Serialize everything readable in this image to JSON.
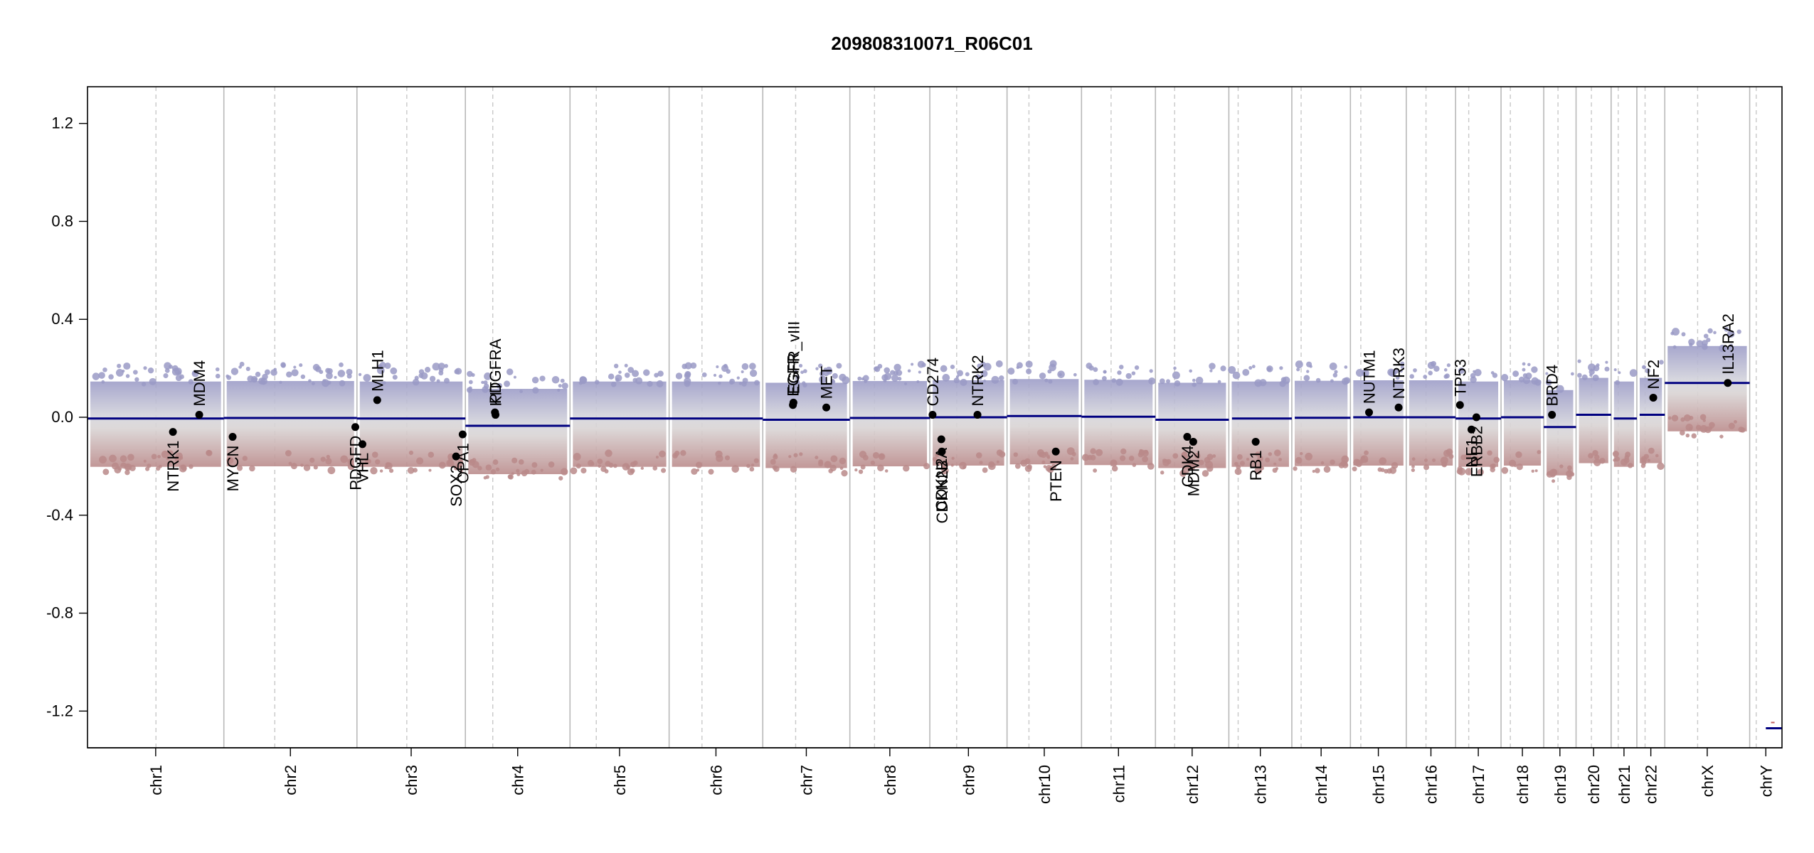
{
  "chart_data": {
    "type": "scatter",
    "title": "209808310071_R06C01",
    "xlabel": "",
    "ylabel": "",
    "ylim": [
      -1.35,
      1.35
    ],
    "y_ticks": [
      -1.2,
      -0.8,
      -0.4,
      0.0,
      0.4,
      0.8,
      1.2
    ],
    "y_tick_labels": [
      "-1.2",
      "-0.8",
      "-0.4",
      "0.0",
      "0.4",
      "0.8",
      "1.2"
    ],
    "grid": false,
    "colors": {
      "gain": "#9a9ac6",
      "neutral": "#d8d8d8",
      "loss": "#ba8a8a",
      "segment": "#000080",
      "chrom_boundary": "#b8b8b8",
      "centromere": "#c8c8c8",
      "gene_marker": "#000000"
    },
    "chromosomes": [
      {
        "name": "chr1",
        "len": 249,
        "cen": 125,
        "segments": [
          {
            "from": 0,
            "to": 1,
            "y": -0.005
          }
        ]
      },
      {
        "name": "chr2",
        "len": 243,
        "cen": 93,
        "segments": [
          {
            "from": 0,
            "to": 1,
            "y": -0.003
          }
        ]
      },
      {
        "name": "chr3",
        "len": 198,
        "cen": 91,
        "segments": [
          {
            "from": 0,
            "to": 1,
            "y": -0.005
          }
        ]
      },
      {
        "name": "chr4",
        "len": 191,
        "cen": 50,
        "segments": [
          {
            "from": 0,
            "to": 1,
            "y": -0.035
          }
        ]
      },
      {
        "name": "chr5",
        "len": 181,
        "cen": 48,
        "segments": [
          {
            "from": 0,
            "to": 1,
            "y": -0.005
          }
        ]
      },
      {
        "name": "chr6",
        "len": 171,
        "cen": 60,
        "segments": [
          {
            "from": 0,
            "to": 1,
            "y": -0.005
          }
        ]
      },
      {
        "name": "chr7",
        "len": 159,
        "cen": 60,
        "segments": [
          {
            "from": 0,
            "to": 1,
            "y": -0.01
          }
        ]
      },
      {
        "name": "chr8",
        "len": 146,
        "cen": 45,
        "segments": [
          {
            "from": 0,
            "to": 1,
            "y": -0.003
          }
        ]
      },
      {
        "name": "chr9",
        "len": 141,
        "cen": 49,
        "segments": [
          {
            "from": 0,
            "to": 1,
            "y": 0.0
          }
        ]
      },
      {
        "name": "chr10",
        "len": 136,
        "cen": 40,
        "segments": [
          {
            "from": 0,
            "to": 1,
            "y": 0.005
          }
        ]
      },
      {
        "name": "chr11",
        "len": 135,
        "cen": 54,
        "segments": [
          {
            "from": 0,
            "to": 1,
            "y": 0.002
          }
        ]
      },
      {
        "name": "chr12",
        "len": 134,
        "cen": 35,
        "segments": [
          {
            "from": 0,
            "to": 1,
            "y": -0.01
          }
        ]
      },
      {
        "name": "chr13",
        "len": 115,
        "cen": 17,
        "segments": [
          {
            "from": 0.05,
            "to": 1,
            "y": -0.005
          }
        ]
      },
      {
        "name": "chr14",
        "len": 107,
        "cen": 17,
        "segments": [
          {
            "from": 0.05,
            "to": 1,
            "y": -0.002
          }
        ]
      },
      {
        "name": "chr15",
        "len": 102,
        "cen": 19,
        "segments": [
          {
            "from": 0.05,
            "to": 1,
            "y": 0.0
          }
        ]
      },
      {
        "name": "chr16",
        "len": 90,
        "cen": 36,
        "segments": [
          {
            "from": 0,
            "to": 1,
            "y": 0.0
          }
        ]
      },
      {
        "name": "chr17",
        "len": 83,
        "cen": 24,
        "segments": [
          {
            "from": 0,
            "to": 1,
            "y": -0.005
          }
        ]
      },
      {
        "name": "chr18",
        "len": 78,
        "cen": 17,
        "segments": [
          {
            "from": 0,
            "to": 1,
            "y": 0.0
          }
        ]
      },
      {
        "name": "chr19",
        "len": 59,
        "cen": 26,
        "segments": [
          {
            "from": 0,
            "to": 1,
            "y": -0.04
          }
        ]
      },
      {
        "name": "chr20",
        "len": 64,
        "cen": 28,
        "segments": [
          {
            "from": 0,
            "to": 1,
            "y": 0.01
          }
        ]
      },
      {
        "name": "chr21",
        "len": 47,
        "cen": 13,
        "segments": [
          {
            "from": 0.1,
            "to": 1,
            "y": -0.005
          }
        ]
      },
      {
        "name": "chr22",
        "len": 51,
        "cen": 15,
        "segments": [
          {
            "from": 0.1,
            "to": 1,
            "y": 0.01
          }
        ]
      },
      {
        "name": "chrX",
        "len": 155,
        "cen": 60,
        "segments": [
          {
            "from": 0,
            "to": 1,
            "y": 0.14
          }
        ]
      },
      {
        "name": "chrY",
        "len": 59,
        "cen": 12,
        "segments": [
          {
            "from": 0.5,
            "to": 1,
            "y": -1.27
          }
        ]
      }
    ],
    "genes": [
      {
        "name": "NTRK1",
        "chr": "chr1",
        "pos": 156,
        "y": -0.06,
        "label": "below"
      },
      {
        "name": "MDM4",
        "chr": "chr1",
        "pos": 204,
        "y": 0.01,
        "label": "above"
      },
      {
        "name": "MYCN",
        "chr": "chr2",
        "pos": 16,
        "y": -0.08,
        "label": "below"
      },
      {
        "name": "PDGFD",
        "chr": "chr2",
        "pos": 240,
        "y": -0.04,
        "label": "below"
      },
      {
        "name": "VHL",
        "chr": "chr3",
        "pos": 10,
        "y": -0.11,
        "label": "below"
      },
      {
        "name": "MLH1",
        "chr": "chr3",
        "pos": 37,
        "y": 0.07,
        "label": "above"
      },
      {
        "name": "SOX2",
        "chr": "chr3",
        "pos": 181,
        "y": -0.16,
        "label": "below"
      },
      {
        "name": "OPA1",
        "chr": "chr3",
        "pos": 193,
        "y": -0.07,
        "label": "below"
      },
      {
        "name": "KIT",
        "chr": "chr4",
        "pos": 55,
        "y": 0.01,
        "label": "above"
      },
      {
        "name": "PDGFRA",
        "chr": "chr4",
        "pos": 54,
        "y": 0.02,
        "label": "above"
      },
      {
        "name": "EGFR",
        "chr": "chr7",
        "pos": 55,
        "y": 0.05,
        "label": "above"
      },
      {
        "name": "EGFR_vIII",
        "chr": "chr7",
        "pos": 56,
        "y": 0.06,
        "label": "above"
      },
      {
        "name": "MET",
        "chr": "chr7",
        "pos": 116,
        "y": 0.04,
        "label": "above"
      },
      {
        "name": "CD274",
        "chr": "chr9",
        "pos": 5,
        "y": 0.01,
        "label": "above"
      },
      {
        "name": "CDKN2A",
        "chr": "chr9",
        "pos": 21,
        "y": -0.09,
        "label": "below"
      },
      {
        "name": "CDKN2B",
        "chr": "chr9",
        "pos": 22,
        "y": -0.14,
        "label": "below"
      },
      {
        "name": "NTRK2",
        "chr": "chr9",
        "pos": 87,
        "y": 0.01,
        "label": "above"
      },
      {
        "name": "PTEN",
        "chr": "chr10",
        "pos": 89,
        "y": -0.14,
        "label": "below"
      },
      {
        "name": "CDK4",
        "chr": "chr12",
        "pos": 58,
        "y": -0.08,
        "label": "below"
      },
      {
        "name": "MDM2",
        "chr": "chr12",
        "pos": 69,
        "y": -0.1,
        "label": "below"
      },
      {
        "name": "RB1",
        "chr": "chr13",
        "pos": 49,
        "y": -0.1,
        "label": "below"
      },
      {
        "name": "NUTM1",
        "chr": "chr15",
        "pos": 34,
        "y": 0.02,
        "label": "above"
      },
      {
        "name": "NTRK3",
        "chr": "chr15",
        "pos": 88,
        "y": 0.04,
        "label": "above"
      },
      {
        "name": "TP53",
        "chr": "chr17",
        "pos": 8,
        "y": 0.05,
        "label": "above"
      },
      {
        "name": "NF1",
        "chr": "chr17",
        "pos": 29,
        "y": -0.05,
        "label": "below"
      },
      {
        "name": "ERBB2",
        "chr": "chr17",
        "pos": 38,
        "y": 0.0,
        "label": "below"
      },
      {
        "name": "BRD4",
        "chr": "chr19",
        "pos": 15,
        "y": 0.01,
        "label": "above"
      },
      {
        "name": "NF2",
        "chr": "chr22",
        "pos": 30,
        "y": 0.08,
        "label": "above"
      },
      {
        "name": "IL13RA2",
        "chr": "chrX",
        "pos": 115,
        "y": 0.14,
        "label": "above"
      }
    ]
  }
}
